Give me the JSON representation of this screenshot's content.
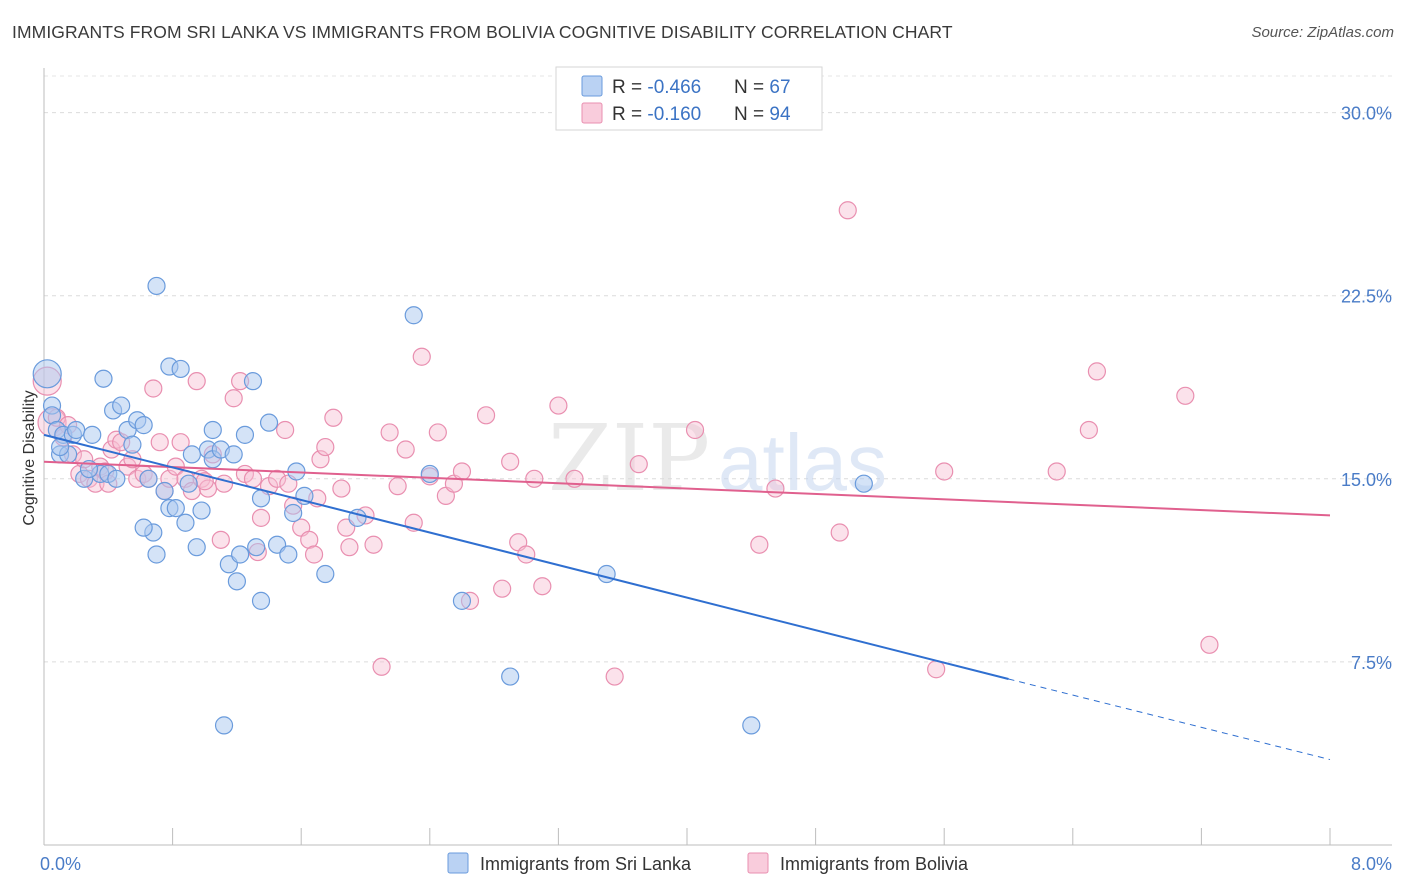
{
  "title": "IMMIGRANTS FROM SRI LANKA VS IMMIGRANTS FROM BOLIVIA COGNITIVE DISABILITY CORRELATION CHART",
  "source": "Source: ZipAtlas.com",
  "watermark": {
    "zip": "ZIP",
    "atlas": "atlas"
  },
  "colors": {
    "sri_lanka_fill": "#a9c7f0",
    "sri_lanka_stroke": "#6a9bdc",
    "sri_lanka_line": "#2f6fd0",
    "bolivia_fill": "#f7bfd3",
    "bolivia_stroke": "#e98fb0",
    "bolivia_line": "#e0608e"
  },
  "legend": {
    "rows": [
      {
        "r_label": "R = ",
        "r_value": "-0.466",
        "n_label": "N = ",
        "n_value": "67"
      },
      {
        "r_label": "R = ",
        "r_value": "-0.160",
        "n_label": "N = ",
        "n_value": "94"
      }
    ]
  },
  "chart_data": {
    "type": "scatter",
    "ylabel": "Cognitive Disability",
    "xlim": [
      0,
      8.0
    ],
    "ylim": [
      0,
      31.5
    ],
    "x_tick_labels": [
      "0.0%",
      "8.0%"
    ],
    "y_ticks": [
      7.5,
      15.0,
      22.5,
      30.0
    ],
    "y_tick_labels": [
      "7.5%",
      "15.0%",
      "22.5%",
      "30.0%"
    ],
    "grid": true,
    "legend_position": "top-center",
    "series": [
      {
        "name": "Immigrants from Sri Lanka",
        "r": -0.466,
        "n": 67,
        "trend": {
          "x0": 0.0,
          "y0": 16.8,
          "x1": 6.0,
          "y1": 6.8,
          "dash_to_x": 8.0,
          "dash_to_y": 3.5
        },
        "points": [
          [
            0.02,
            19.3
          ],
          [
            0.05,
            18.0
          ],
          [
            0.05,
            17.6
          ],
          [
            0.08,
            17.0
          ],
          [
            0.1,
            16.0
          ],
          [
            0.12,
            16.8
          ],
          [
            0.15,
            16.0
          ],
          [
            0.18,
            16.8
          ],
          [
            0.2,
            17.0
          ],
          [
            0.25,
            15.0
          ],
          [
            0.3,
            16.8
          ],
          [
            0.35,
            15.2
          ],
          [
            0.37,
            19.1
          ],
          [
            0.4,
            15.2
          ],
          [
            0.43,
            17.8
          ],
          [
            0.45,
            15.0
          ],
          [
            0.48,
            18.0
          ],
          [
            0.52,
            17.0
          ],
          [
            0.55,
            16.4
          ],
          [
            0.58,
            17.4
          ],
          [
            0.62,
            17.2
          ],
          [
            0.65,
            15.0
          ],
          [
            0.68,
            12.8
          ],
          [
            0.7,
            11.9
          ],
          [
            0.7,
            22.9
          ],
          [
            0.75,
            14.5
          ],
          [
            0.78,
            19.6
          ],
          [
            0.78,
            13.8
          ],
          [
            0.82,
            13.8
          ],
          [
            0.85,
            19.5
          ],
          [
            0.88,
            13.2
          ],
          [
            0.9,
            14.8
          ],
          [
            0.95,
            12.2
          ],
          [
            0.98,
            13.7
          ],
          [
            1.02,
            16.2
          ],
          [
            1.05,
            15.8
          ],
          [
            1.05,
            17.0
          ],
          [
            1.1,
            16.2
          ],
          [
            1.12,
            4.9
          ],
          [
            1.15,
            11.5
          ],
          [
            1.18,
            16.0
          ],
          [
            1.2,
            10.8
          ],
          [
            1.22,
            11.9
          ],
          [
            1.25,
            16.8
          ],
          [
            1.3,
            19.0
          ],
          [
            1.32,
            12.2
          ],
          [
            1.35,
            10.0
          ],
          [
            1.4,
            17.3
          ],
          [
            1.45,
            12.3
          ],
          [
            1.52,
            11.9
          ],
          [
            1.55,
            13.6
          ],
          [
            1.57,
            15.3
          ],
          [
            1.62,
            14.3
          ],
          [
            1.75,
            11.1
          ],
          [
            1.95,
            13.4
          ],
          [
            2.3,
            21.7
          ],
          [
            2.4,
            15.2
          ],
          [
            2.6,
            10.0
          ],
          [
            2.9,
            6.9
          ],
          [
            3.5,
            11.1
          ],
          [
            4.4,
            4.9
          ],
          [
            5.1,
            14.8
          ],
          [
            0.1,
            16.3
          ],
          [
            0.92,
            16.0
          ],
          [
            0.28,
            15.4
          ],
          [
            1.35,
            14.2
          ],
          [
            0.62,
            13.0
          ]
        ]
      },
      {
        "name": "Immigrants from Bolivia",
        "r": -0.16,
        "n": 94,
        "trend": {
          "x0": 0.0,
          "y0": 15.7,
          "x1": 8.0,
          "y1": 13.5
        },
        "points": [
          [
            0.02,
            19.0
          ],
          [
            0.05,
            17.3
          ],
          [
            0.08,
            17.5
          ],
          [
            0.12,
            16.7
          ],
          [
            0.15,
            17.2
          ],
          [
            0.18,
            16.0
          ],
          [
            0.22,
            15.2
          ],
          [
            0.25,
            15.8
          ],
          [
            0.28,
            15.0
          ],
          [
            0.32,
            14.8
          ],
          [
            0.35,
            15.5
          ],
          [
            0.38,
            15.3
          ],
          [
            0.42,
            16.2
          ],
          [
            0.45,
            16.6
          ],
          [
            0.48,
            16.5
          ],
          [
            0.52,
            15.5
          ],
          [
            0.55,
            15.8
          ],
          [
            0.58,
            15.0
          ],
          [
            0.62,
            15.2
          ],
          [
            0.65,
            15.0
          ],
          [
            0.68,
            18.7
          ],
          [
            0.72,
            16.5
          ],
          [
            0.75,
            14.5
          ],
          [
            0.78,
            15.0
          ],
          [
            0.82,
            15.5
          ],
          [
            0.85,
            16.5
          ],
          [
            0.88,
            15.0
          ],
          [
            0.92,
            14.5
          ],
          [
            0.95,
            19.0
          ],
          [
            0.98,
            15.0
          ],
          [
            1.02,
            14.6
          ],
          [
            1.05,
            16.0
          ],
          [
            1.1,
            12.5
          ],
          [
            1.12,
            14.8
          ],
          [
            1.18,
            18.3
          ],
          [
            1.22,
            19.0
          ],
          [
            1.25,
            15.2
          ],
          [
            1.3,
            15.0
          ],
          [
            1.33,
            12.0
          ],
          [
            1.35,
            13.4
          ],
          [
            1.4,
            14.7
          ],
          [
            1.45,
            15.0
          ],
          [
            1.5,
            17.0
          ],
          [
            1.52,
            14.8
          ],
          [
            1.55,
            13.9
          ],
          [
            1.6,
            13.0
          ],
          [
            1.65,
            12.5
          ],
          [
            1.68,
            11.9
          ],
          [
            1.72,
            15.8
          ],
          [
            1.75,
            16.3
          ],
          [
            1.8,
            17.5
          ],
          [
            1.85,
            14.6
          ],
          [
            1.88,
            13.0
          ],
          [
            1.9,
            12.2
          ],
          [
            2.0,
            13.5
          ],
          [
            2.05,
            12.3
          ],
          [
            2.1,
            7.3
          ],
          [
            2.15,
            16.9
          ],
          [
            2.2,
            14.7
          ],
          [
            2.25,
            16.2
          ],
          [
            2.3,
            13.2
          ],
          [
            2.35,
            20.0
          ],
          [
            2.4,
            15.1
          ],
          [
            2.45,
            16.9
          ],
          [
            2.5,
            14.3
          ],
          [
            2.55,
            14.8
          ],
          [
            2.6,
            15.3
          ],
          [
            2.65,
            10.0
          ],
          [
            2.75,
            17.6
          ],
          [
            2.85,
            10.5
          ],
          [
            2.9,
            15.7
          ],
          [
            2.95,
            12.4
          ],
          [
            3.0,
            11.9
          ],
          [
            3.05,
            15.0
          ],
          [
            3.1,
            10.6
          ],
          [
            3.2,
            18.0
          ],
          [
            3.3,
            15.0
          ],
          [
            3.55,
            6.9
          ],
          [
            3.7,
            15.6
          ],
          [
            4.05,
            17.0
          ],
          [
            4.45,
            12.3
          ],
          [
            4.55,
            14.6
          ],
          [
            4.95,
            12.8
          ],
          [
            5.0,
            26.0
          ],
          [
            5.55,
            7.2
          ],
          [
            5.6,
            15.3
          ],
          [
            6.3,
            15.3
          ],
          [
            6.5,
            17.0
          ],
          [
            6.55,
            19.4
          ],
          [
            7.1,
            18.4
          ],
          [
            7.25,
            8.2
          ],
          [
            1.0,
            14.9
          ],
          [
            0.4,
            14.8
          ],
          [
            1.7,
            14.2
          ]
        ]
      }
    ]
  }
}
